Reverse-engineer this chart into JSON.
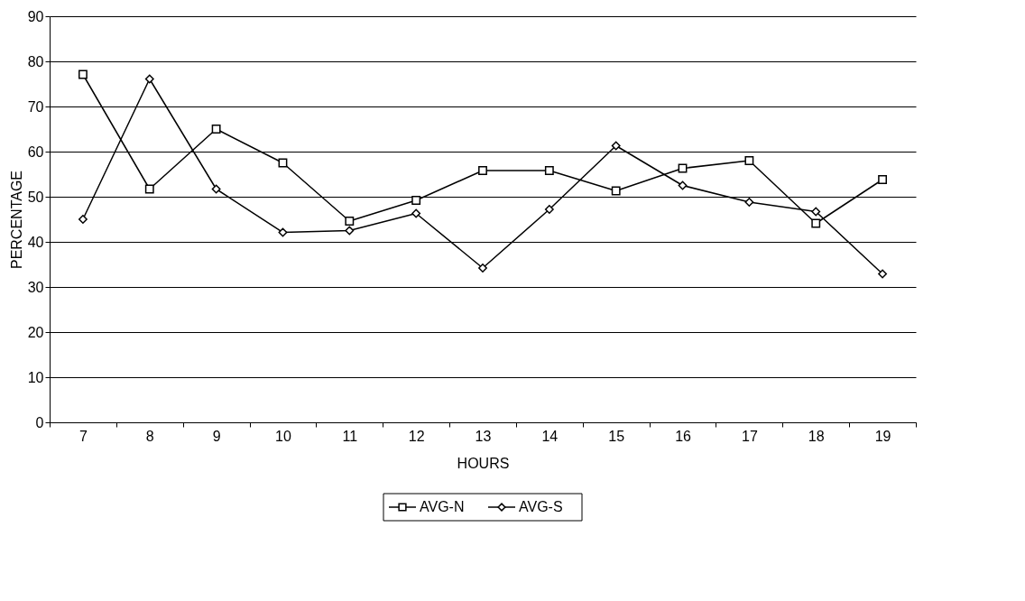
{
  "chart_data": {
    "type": "line",
    "xlabel": "HOURS",
    "ylabel": "PERCENTAGE",
    "categories": [
      "7",
      "8",
      "9",
      "10",
      "11",
      "12",
      "13",
      "14",
      "15",
      "16",
      "17",
      "18",
      "19"
    ],
    "series": [
      {
        "name": "AVG-N",
        "color": "#000000",
        "marker": "square",
        "values": [
          77.1,
          51.7,
          65,
          57.5,
          44.6,
          49.2,
          55.8,
          55.8,
          51.3,
          56.3,
          58,
          44.1,
          53.8
        ]
      },
      {
        "name": "AVG-S",
        "color": "#000000",
        "marker": "diamond",
        "values": [
          45,
          76.1,
          51.7,
          42.1,
          42.5,
          46.3,
          34.2,
          47.2,
          61.3,
          52.5,
          48.8,
          46.7,
          32.9
        ]
      }
    ],
    "ylim": [
      0,
      90
    ],
    "yticks": [
      0,
      10,
      20,
      30,
      40,
      50,
      60,
      70,
      80,
      90
    ],
    "grid": "y",
    "legend": "bottom",
    "line_style": "solid"
  }
}
